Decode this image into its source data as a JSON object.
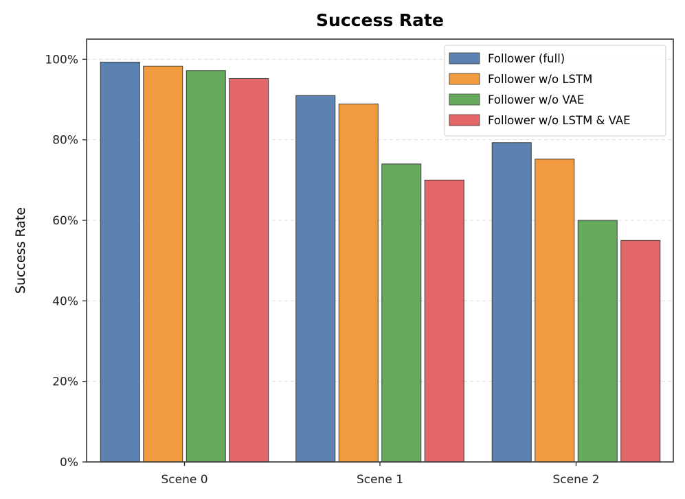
{
  "chart_data": {
    "type": "bar",
    "title": "Success Rate",
    "xlabel": "",
    "ylabel": "Success Rate",
    "categories": [
      "Scene 0",
      "Scene 1",
      "Scene 2"
    ],
    "ylim": [
      0,
      105
    ],
    "yticks": [
      {
        "value": 0,
        "label": "0%"
      },
      {
        "value": 20,
        "label": "20%"
      },
      {
        "value": 40,
        "label": "40%"
      },
      {
        "value": 60,
        "label": "60%"
      },
      {
        "value": 80,
        "label": "80%"
      },
      {
        "value": 100,
        "label": "100%"
      }
    ],
    "grid": "y-dashed",
    "legend_position": "top-right",
    "series": [
      {
        "name": "Follower (full)",
        "color": "#5b82b0",
        "values": [
          99.3,
          91.0,
          79.3
        ]
      },
      {
        "name": "Follower w/o LSTM",
        "color": "#f29a3e",
        "values": [
          98.3,
          88.9,
          75.2
        ]
      },
      {
        "name": "Follower w/o VAE",
        "color": "#66aa5d",
        "values": [
          97.2,
          74.0,
          60.0
        ]
      },
      {
        "name": "Follower w/o LSTM & VAE",
        "color": "#e36767",
        "values": [
          95.2,
          70.0,
          55.0
        ]
      }
    ]
  }
}
